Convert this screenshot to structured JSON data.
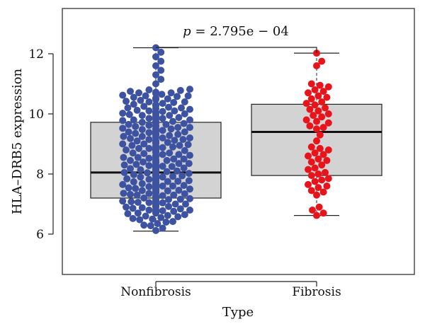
{
  "chart_data": {
    "type": "box-swarm",
    "xlabel": "Type",
    "ylabel": "HLA–DRB5 expression",
    "categories": [
      "Nonfibrosis",
      "Fibrosis"
    ],
    "ylim": [
      4.6,
      13.3
    ],
    "yticks": [
      6,
      8,
      10,
      12
    ],
    "annotation": {
      "italic_part": "p",
      "rest": " = 2.795e − 04"
    },
    "colors": {
      "box_fill": "#d3d3d3",
      "Nonfibrosis": "#3d52a1",
      "Fibrosis": "#e8141b"
    },
    "boxes": [
      {
        "category": "Nonfibrosis",
        "whisker_low": 6.1,
        "q1": 7.2,
        "median": 8.05,
        "q3": 9.72,
        "whisker_high": 12.2
      },
      {
        "category": "Fibrosis",
        "whisker_low": 6.62,
        "q1": 7.95,
        "median": 9.4,
        "q3": 10.32,
        "whisker_high": 12.02
      }
    ],
    "points": {
      "Nonfibrosis": [
        6.12,
        6.2,
        6.28,
        6.35,
        6.42,
        6.5,
        6.55,
        6.6,
        6.65,
        6.7,
        6.75,
        6.78,
        6.82,
        6.86,
        6.9,
        6.94,
        6.98,
        7.02,
        7.06,
        7.1,
        7.14,
        7.18,
        7.22,
        7.26,
        7.3,
        7.34,
        7.38,
        7.42,
        7.46,
        7.5,
        7.54,
        7.58,
        7.62,
        7.66,
        7.7,
        7.74,
        7.78,
        7.82,
        7.86,
        7.9,
        7.94,
        7.98,
        8.02,
        8.06,
        8.1,
        8.14,
        8.18,
        8.22,
        8.26,
        8.3,
        8.35,
        8.4,
        8.45,
        8.5,
        8.55,
        8.6,
        8.65,
        8.7,
        8.75,
        8.8,
        8.85,
        8.9,
        8.95,
        9.0,
        9.05,
        9.1,
        9.15,
        9.2,
        9.25,
        9.3,
        9.35,
        9.4,
        9.45,
        9.5,
        9.55,
        9.6,
        9.65,
        9.7,
        9.75,
        9.8,
        9.85,
        9.9,
        9.95,
        10.0,
        10.05,
        10.1,
        10.15,
        10.2,
        10.25,
        10.3,
        10.35,
        10.4,
        10.45,
        10.5,
        10.55,
        10.6,
        10.65,
        10.7,
        10.75,
        10.8,
        11.0,
        11.15,
        11.3,
        11.45,
        11.6,
        11.75,
        11.9,
        12.05,
        12.2,
        6.3,
        6.48,
        6.62,
        6.72,
        6.8,
        6.88,
        6.96,
        7.04,
        7.12,
        7.2,
        7.28,
        7.36,
        7.44,
        7.52,
        7.6,
        7.68,
        7.76,
        7.84,
        7.92,
        8.0,
        8.08,
        8.16,
        8.24,
        8.32,
        8.42,
        8.52,
        8.62,
        8.72,
        8.82,
        8.92,
        9.02,
        9.12,
        9.22,
        9.32,
        9.42,
        9.52,
        9.62,
        9.72,
        9.82,
        9.92,
        10.02,
        10.12,
        10.22,
        10.32,
        10.42,
        10.52,
        10.62,
        10.72,
        10.82,
        6.4,
        6.58,
        6.68,
        6.76,
        6.84,
        6.92,
        7.0,
        7.08,
        7.16,
        7.24,
        7.32,
        7.4,
        7.48,
        7.56,
        7.64,
        7.72,
        7.8,
        7.88,
        7.96,
        8.04,
        8.12,
        8.2,
        8.28,
        8.38,
        8.48,
        8.58,
        8.68,
        8.78,
        8.88,
        8.98,
        9.08,
        9.18,
        9.28,
        9.38,
        9.48,
        9.58,
        9.68,
        9.78,
        9.88,
        9.98,
        10.08,
        10.18,
        10.28,
        10.38,
        10.48,
        10.58,
        10.68,
        10.78,
        6.52,
        6.7,
        6.8,
        6.9,
        7.0,
        7.1,
        7.2,
        7.3,
        7.4,
        7.5,
        7.6,
        7.7,
        7.8,
        7.9,
        8.0,
        8.1,
        8.2,
        8.3,
        8.4,
        8.5,
        8.6,
        8.7,
        8.8,
        8.9,
        9.0,
        9.1,
        9.2,
        9.3,
        9.4,
        9.5,
        9.6,
        9.7,
        9.8,
        9.9,
        10.0,
        10.1,
        10.2,
        10.3,
        10.4,
        10.5,
        10.6,
        10.7,
        6.95,
        7.05,
        7.15,
        7.25,
        7.35,
        7.45,
        7.55,
        7.65,
        7.75,
        7.85,
        7.95,
        8.05,
        8.15,
        8.25,
        8.35,
        8.45,
        8.55,
        8.65,
        8.75,
        8.85,
        8.95,
        9.05,
        9.15,
        9.25,
        9.35,
        9.45,
        9.55,
        9.65,
        9.75,
        9.85,
        9.95,
        10.05
      ],
      "Fibrosis": [
        6.62,
        6.7,
        6.8,
        6.9,
        7.3,
        7.45,
        7.55,
        7.65,
        7.75,
        7.85,
        7.95,
        8.05,
        8.15,
        8.3,
        8.4,
        8.5,
        8.6,
        8.7,
        8.8,
        8.9,
        9.1,
        9.3,
        9.5,
        9.6,
        9.7,
        9.8,
        9.9,
        10.0,
        10.1,
        10.2,
        10.3,
        10.4,
        10.5,
        10.6,
        10.7,
        10.8,
        10.9,
        11.0,
        11.6,
        11.75,
        12.02,
        7.4,
        7.6,
        7.8,
        8.0,
        8.2,
        8.45,
        8.65,
        8.85,
        9.55,
        9.75,
        9.95,
        10.15,
        10.35,
        10.55,
        10.75,
        10.95
      ]
    }
  }
}
